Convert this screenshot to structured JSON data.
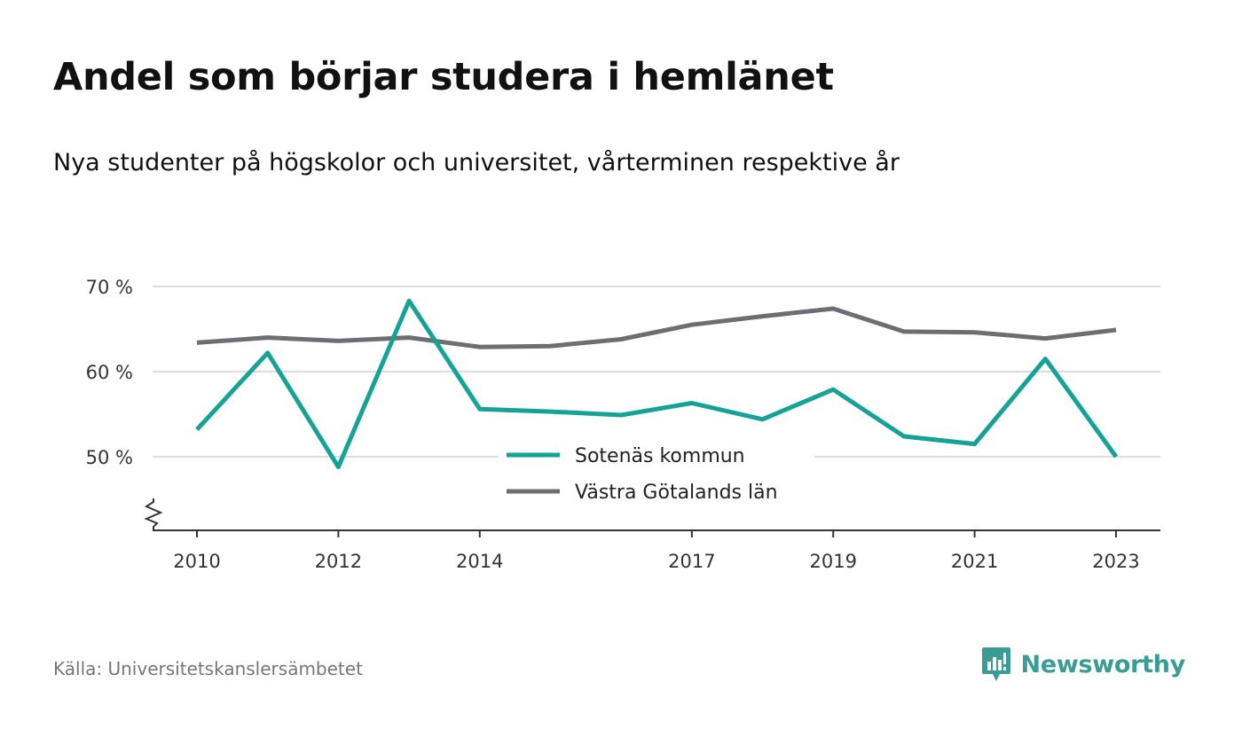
{
  "header": {
    "title": "Andel som börjar studera i hemlänet",
    "subtitle": "Nya studenter på högskolor och universitet, vårterminen respektive år"
  },
  "footer": {
    "source": "Källa: Universitetskanslersämbetet",
    "brand": "Newsworthy",
    "brand_icon": "newsworthy-logo-icon"
  },
  "colors": {
    "sotenas": "#14a396",
    "vastra_gotaland": "#6e6d74",
    "grid": "#dddddd",
    "axis": "#333333",
    "brand": "#3a9c95"
  },
  "chart_data": {
    "type": "line",
    "x": [
      2010,
      2011,
      2012,
      2013,
      2014,
      2015,
      2016,
      2017,
      2018,
      2019,
      2020,
      2021,
      2022,
      2023
    ],
    "x_tick_labels": [
      "2010",
      "2012",
      "2014",
      "2017",
      "2019",
      "2021",
      "2023"
    ],
    "y_tick_labels": [
      "50 %",
      "60 %",
      "70 %"
    ],
    "y_ticks": [
      50,
      60,
      70
    ],
    "ylim": [
      41,
      71
    ],
    "y_axis_break": true,
    "grid": true,
    "legend_position": "center",
    "series": [
      {
        "name": "Sotenäs kommun",
        "color": "#14a396",
        "values": [
          53.2,
          62.2,
          48.8,
          68.3,
          55.6,
          55.3,
          54.9,
          56.3,
          54.4,
          57.9,
          52.4,
          51.5,
          61.5,
          50.0
        ]
      },
      {
        "name": "Västra Götalands län",
        "color": "#6e6d74",
        "values": [
          63.4,
          64.0,
          63.6,
          64.0,
          62.9,
          63.0,
          63.8,
          65.5,
          66.5,
          67.4,
          64.7,
          64.6,
          63.9,
          64.9
        ]
      }
    ]
  }
}
